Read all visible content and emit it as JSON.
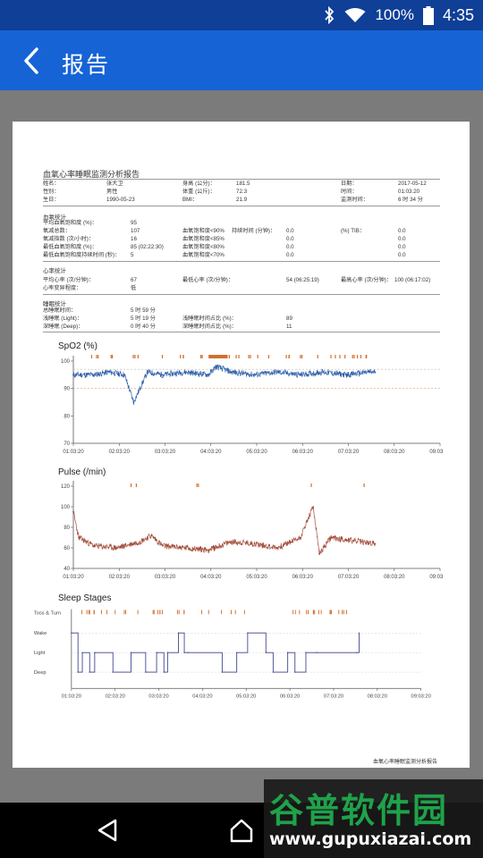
{
  "status_bar": {
    "battery_percent": "100%",
    "time": "4:35",
    "icons": [
      "bluetooth-icon",
      "wifi-icon",
      "battery-icon"
    ]
  },
  "app_bar": {
    "title": "报告",
    "back_icon": "chevron-left-icon"
  },
  "report": {
    "title": "血氧心率睡眠监测分析报告",
    "info": {
      "name_label": "姓名：",
      "name_value": "张大卫",
      "height_label": "身高 (公分)：",
      "height_value": "181.5",
      "date_label": "日期：",
      "date_value": "2017-05-12",
      "gender_label": "性别：",
      "gender_value": "男性",
      "weight_label": "体重 (公斤)：",
      "weight_value": "72.3",
      "time_label": "时间：",
      "time_value": "01:03:20",
      "birth_label": "生日：",
      "birth_value": "1990-05-23",
      "bmi_label": "BMI：",
      "bmi_value": "21.9",
      "duration_label": "监测时间：",
      "duration_value": "6 时 34 分"
    },
    "spo2_stats": {
      "title": "血氧统计",
      "rows": [
        {
          "label": "平均血氧饱和度 (%)：",
          "value": "95"
        },
        {
          "label": "氧减总数：",
          "value": "107",
          "label2": "血氧饱和度<90%",
          "value2": "0.0",
          "label3": "(%) TIB：",
          "value3": "0.0",
          "label4": "持续时间 (分钟)："
        },
        {
          "label": "氧减指数 (次/小时)：",
          "value": "16",
          "label2": "血氧饱和度<85%",
          "value2": "0.0",
          "value3": "0.0"
        },
        {
          "label": "最低血氧饱和度 (%)：",
          "value": "85 (02:22:30)",
          "label2": "血氧饱和度<80%",
          "value2": "0.0",
          "value3": "0.0"
        },
        {
          "label": "最低血氧饱和度持续时间 (秒)：",
          "value": "5",
          "label2": "血氧饱和度<70%",
          "value2": "0.0",
          "value3": "0.0"
        }
      ]
    },
    "hr_stats": {
      "title": "心率统计",
      "avg_label": "平均心率 (次/分钟)：",
      "avg_value": "67",
      "min_label": "最低心率 (次/分钟)：",
      "min_value": "54 (06:25:19)",
      "max_label": "最高心率 (次/分钟)：",
      "max_value": "100 (06:17:02)",
      "variability_label": "心率变异程度：",
      "variability_value": "低"
    },
    "sleep_stats": {
      "title": "睡眠统计",
      "total_label": "总睡眠时间：",
      "total_value": "5 时 59 分",
      "light_label": "浅睡眠 (Light)：",
      "light_value": "5 时 19 分",
      "light_pct_label": "浅睡眠时间占比 (%)：",
      "light_pct_value": "89",
      "deep_label": "深睡眠 (Deep)：",
      "deep_value": "0 时 40 分",
      "deep_pct_label": "深睡眠时间占比 (%)：",
      "deep_pct_value": "11"
    },
    "footer": "血氧心率睡眠监测分析报告"
  },
  "chart_data": [
    {
      "type": "line",
      "title": "SpO2 (%)",
      "ylim": [
        70,
        100
      ],
      "yticks": [
        "100",
        "90",
        "80",
        "70"
      ],
      "x_ticks": [
        "01:03:20",
        "02:03:20",
        "03:03:20",
        "04:03:20",
        "05:03:20",
        "06:03:20",
        "07:03:20",
        "08:03:20",
        "09:03:20"
      ],
      "series": [
        {
          "x": [
            "01:03",
            "01:30",
            "01:50",
            "02:10",
            "02:22",
            "02:40",
            "03:00",
            "03:30",
            "04:00",
            "04:10",
            "04:30",
            "05:00",
            "05:30",
            "06:00",
            "06:30",
            "07:00",
            "07:30",
            "07:38"
          ],
          "values": [
            95,
            95,
            96,
            95,
            85,
            96,
            95,
            96,
            95,
            98,
            96,
            95,
            96,
            95,
            96,
            95,
            96,
            96
          ]
        }
      ],
      "reference_lines": [
        97,
        90
      ],
      "color": "#2e5fa8",
      "event_color": "#d0702e"
    },
    {
      "type": "line",
      "title": "Pulse (/min)",
      "ylim": [
        40,
        120
      ],
      "yticks": [
        "120",
        "100",
        "80",
        "60",
        "40"
      ],
      "x_ticks": [
        "01:03:20",
        "02:03:20",
        "03:03:20",
        "04:03:20",
        "05:03:20",
        "06:03:20",
        "07:03:20",
        "08:03:20",
        "09:03:20"
      ],
      "series": [
        {
          "x": [
            "01:03",
            "01:10",
            "01:30",
            "02:00",
            "02:30",
            "02:45",
            "03:00",
            "03:30",
            "04:00",
            "04:30",
            "05:00",
            "05:30",
            "06:00",
            "06:17",
            "06:25",
            "06:40",
            "07:00",
            "07:38"
          ],
          "values": [
            95,
            70,
            62,
            60,
            66,
            72,
            62,
            60,
            58,
            66,
            64,
            60,
            70,
            100,
            54,
            70,
            68,
            64
          ]
        }
      ],
      "color": "#a34c3a",
      "event_color": "#d0702e"
    },
    {
      "type": "line",
      "title": "Sleep Stages",
      "categories": [
        "Toss & Turn",
        "Wake",
        "Light",
        "Deep"
      ],
      "x_ticks": [
        "01:03:20",
        "02:03:20",
        "03:03:20",
        "04:03:20",
        "05:03:20",
        "06:03:20",
        "07:03:20",
        "08:03:20",
        "09:03:20"
      ],
      "series": [
        {
          "x": [
            "01:03",
            "01:12",
            "01:18",
            "01:28",
            "01:35",
            "02:00",
            "02:25",
            "02:45",
            "03:00",
            "03:10",
            "03:15",
            "03:30",
            "03:38",
            "03:43",
            "04:30",
            "04:50",
            "05:05",
            "05:30",
            "05:40",
            "06:00",
            "06:10",
            "06:25",
            "06:40",
            "07:35",
            "07:38"
          ],
          "values": [
            "Wake",
            "Deep",
            "Light",
            "Deep",
            "Light",
            "Deep",
            "Light",
            "Deep",
            "Light",
            "Deep",
            "Light",
            "Wake",
            "Light",
            "Light",
            "Deep",
            "Light",
            "Wake",
            "Light",
            "Deep",
            "Light",
            "Deep",
            "Light",
            "Light",
            "Light",
            "Wake"
          ]
        }
      ],
      "color": "#3a3f8a",
      "event_color": "#d0702e"
    }
  ],
  "nav_bar": {
    "back_icon": "back-triangle-icon",
    "home_icon": "home-icon"
  },
  "watermark": {
    "main": "谷普软件园",
    "url": "www.gupuxiazai.com"
  }
}
